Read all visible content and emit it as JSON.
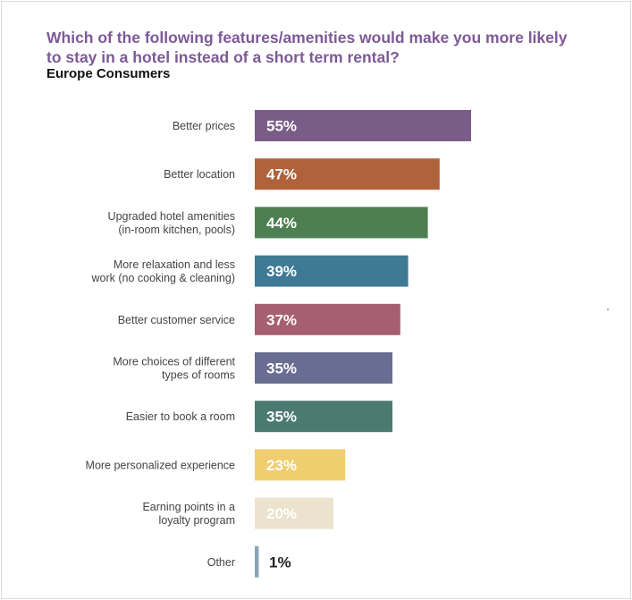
{
  "chart_data": {
    "type": "bar",
    "orientation": "horizontal",
    "title": "Which of the following features/amenities would make you more likely to stay in a hotel instead of a short term rental?",
    "subtitle": "Europe Consumers",
    "categories": [
      [
        "Better prices"
      ],
      [
        "Better location"
      ],
      [
        "Upgraded hotel amenities",
        "(in-room kitchen, pools)"
      ],
      [
        "More relaxation and less",
        "work (no cooking & cleaning)"
      ],
      [
        "Better customer service"
      ],
      [
        "More choices of different",
        "types of rooms"
      ],
      [
        "Easier to book a room"
      ],
      [
        "More personalized experience"
      ],
      [
        "Earning points in a",
        "loyalty program"
      ],
      [
        "Other"
      ]
    ],
    "values": [
      55,
      47,
      44,
      39,
      37,
      35,
      35,
      23,
      20,
      1
    ],
    "value_labels": [
      "55%",
      "47%",
      "44%",
      "39%",
      "37%",
      "35%",
      "35%",
      "23%",
      "20%",
      "1%"
    ],
    "colors": [
      "#7a5c87",
      "#b0633a",
      "#4e7f52",
      "#3f7a94",
      "#a55f6f",
      "#6a6d92",
      "#4a7a72",
      "#f0cd6e",
      "#ebe3cd",
      "#8aa3b3"
    ],
    "label_colors": [
      "#ffffff",
      "#ffffff",
      "#ffffff",
      "#ffffff",
      "#ffffff",
      "#ffffff",
      "#ffffff",
      "#ffffff",
      "#ffffff",
      "#222222"
    ],
    "xlim": [
      0,
      55
    ],
    "grid": false,
    "legend": "none"
  }
}
